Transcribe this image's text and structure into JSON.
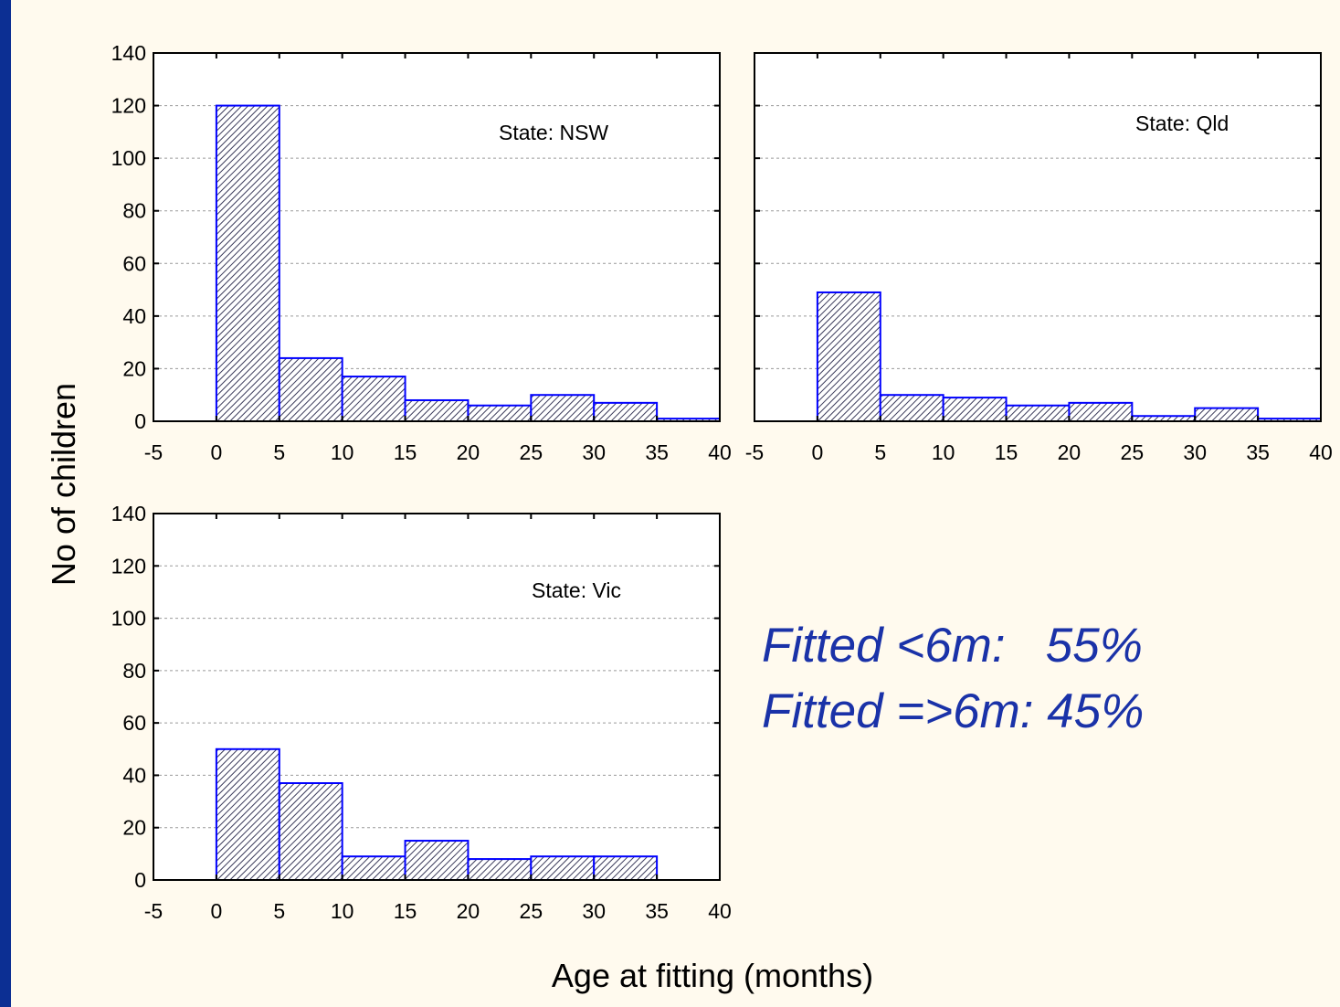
{
  "chart_data": {
    "type": "bar",
    "ylabel": "No of children",
    "xlabel": "Age at fitting (months)",
    "x_ticks": [
      "-5",
      "0",
      "5",
      "10",
      "15",
      "20",
      "25",
      "30",
      "35",
      "40"
    ],
    "y_ticks": [
      "0",
      "20",
      "40",
      "60",
      "80",
      "100",
      "120",
      "140"
    ],
    "xlim": [
      -5,
      40
    ],
    "ylim": [
      0,
      140
    ],
    "grid": true,
    "bin_edges": [
      0,
      5,
      10,
      15,
      20,
      25,
      30,
      35,
      40
    ],
    "bar_color": "#0000ff",
    "panels": [
      {
        "label": "State: NSW",
        "values": [
          120,
          24,
          17,
          8,
          6,
          10,
          7,
          1
        ]
      },
      {
        "label": "State: Qld",
        "values": [
          49,
          10,
          9,
          6,
          7,
          2,
          5,
          1
        ]
      },
      {
        "label": "State: Vic",
        "values": [
          50,
          37,
          9,
          15,
          8,
          9,
          9,
          0
        ]
      }
    ],
    "annotations": [
      "Fitted <6m:   55%",
      "Fitted =>6m: 45%"
    ]
  }
}
